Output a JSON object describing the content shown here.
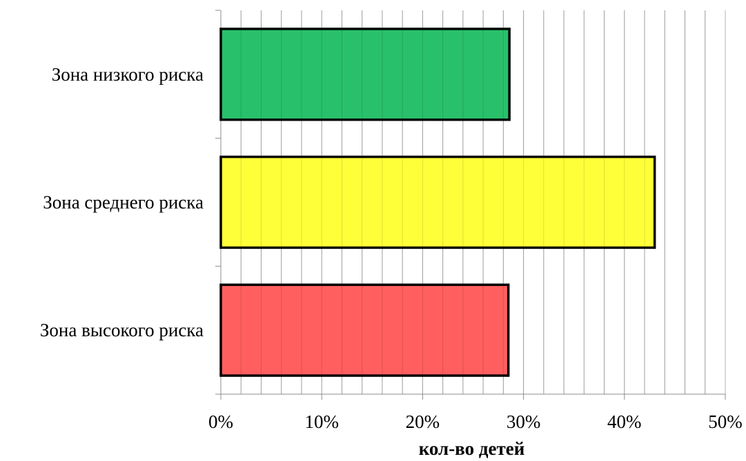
{
  "chart_data": {
    "type": "bar",
    "orientation": "horizontal",
    "categories": [
      "Зона низкого риска",
      "Зона среднего риска",
      "Зона высокого риска"
    ],
    "values": [
      0.286,
      0.43,
      0.285
    ],
    "bar_colors": [
      "#22be66",
      "#ffff33",
      "#ff5a5a"
    ],
    "bar_border_color": "#000000",
    "xlabel": "кол-во детей",
    "ylabel": "",
    "xlim": [
      0,
      0.5
    ],
    "x_ticks": [
      0,
      0.1,
      0.2,
      0.3,
      0.4,
      0.5
    ],
    "x_tick_labels": [
      "0%",
      "10%",
      "20%",
      "30%",
      "40%",
      "50%"
    ],
    "minor_grid_step": 0.02,
    "grid": "vertical",
    "legend": "none"
  }
}
